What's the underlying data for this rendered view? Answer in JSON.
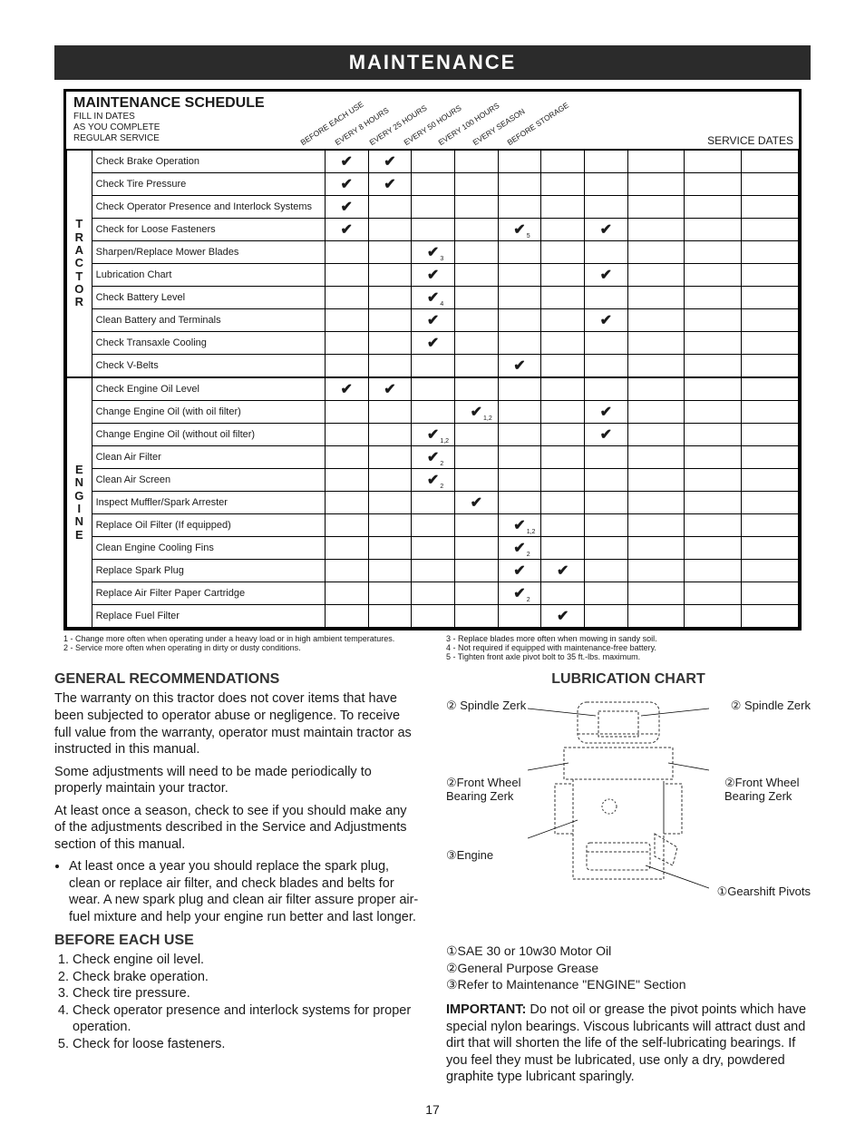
{
  "banner": "MAINTENANCE",
  "schedule": {
    "title": "MAINTENANCE SCHEDULE",
    "subtitle1": "FILL IN DATES",
    "subtitle2": "AS YOU COMPLETE",
    "subtitle3": "REGULAR SERVICE",
    "columns": [
      "BEFORE EACH USE",
      "EVERY 8 HOURS",
      "EVERY 25 HOURS",
      "EVERY 50 HOURS",
      "EVERY 100 HOURS",
      "EVERY SEASON",
      "BEFORE STORAGE"
    ],
    "service_dates_label": "SERVICE DATES",
    "groups": [
      {
        "label": "TRACTOR",
        "rows": [
          {
            "task": "Check Brake Operation",
            "checks": [
              "✔",
              "✔",
              "",
              "",
              "",
              "",
              ""
            ]
          },
          {
            "task": "Check Tire Pressure",
            "checks": [
              "✔",
              "✔",
              "",
              "",
              "",
              "",
              ""
            ]
          },
          {
            "task": "Check Operator Presence and Interlock Systems",
            "checks": [
              "✔",
              "",
              "",
              "",
              "",
              "",
              ""
            ]
          },
          {
            "task": "Check for Loose Fasteners",
            "checks": [
              "✔",
              "",
              "",
              "",
              "✔₅",
              "",
              "✔"
            ]
          },
          {
            "task": "Sharpen/Replace Mower Blades",
            "checks": [
              "",
              "",
              "✔₃",
              "",
              "",
              "",
              ""
            ]
          },
          {
            "task": "Lubrication Chart",
            "checks": [
              "",
              "",
              "✔",
              "",
              "",
              "",
              "✔"
            ]
          },
          {
            "task": "Check Battery Level",
            "checks": [
              "",
              "",
              "✔₄",
              "",
              "",
              "",
              ""
            ]
          },
          {
            "task": "Clean Battery and Terminals",
            "checks": [
              "",
              "",
              "✔",
              "",
              "",
              "",
              "✔"
            ]
          },
          {
            "task": "Check Transaxle Cooling",
            "checks": [
              "",
              "",
              "✔",
              "",
              "",
              "",
              ""
            ]
          },
          {
            "task": "Check V-Belts",
            "checks": [
              "",
              "",
              "",
              "",
              "✔",
              "",
              ""
            ]
          }
        ]
      },
      {
        "label": "ENGINE",
        "rows": [
          {
            "task": "Check Engine Oil Level",
            "checks": [
              "✔",
              "✔",
              "",
              "",
              "",
              "",
              ""
            ]
          },
          {
            "task": "Change Engine Oil (with oil filter)",
            "checks": [
              "",
              "",
              "",
              "✔₁,₂",
              "",
              "",
              "✔"
            ]
          },
          {
            "task": "Change Engine Oil (without oil filter)",
            "checks": [
              "",
              "",
              "✔₁,₂",
              "",
              "",
              "",
              "✔"
            ]
          },
          {
            "task": "Clean Air Filter",
            "checks": [
              "",
              "",
              "✔₂",
              "",
              "",
              "",
              ""
            ]
          },
          {
            "task": "Clean Air Screen",
            "checks": [
              "",
              "",
              "✔₂",
              "",
              "",
              "",
              ""
            ]
          },
          {
            "task": "Inspect Muffler/Spark Arrester",
            "checks": [
              "",
              "",
              "",
              "✔",
              "",
              "",
              ""
            ]
          },
          {
            "task": "Replace Oil Filter (If equipped)",
            "checks": [
              "",
              "",
              "",
              "",
              "✔₁,₂",
              "",
              ""
            ]
          },
          {
            "task": "Clean Engine Cooling Fins",
            "checks": [
              "",
              "",
              "",
              "",
              "✔₂",
              "",
              ""
            ]
          },
          {
            "task": "Replace Spark Plug",
            "checks": [
              "",
              "",
              "",
              "",
              "✔",
              "✔",
              ""
            ]
          },
          {
            "task": "Replace Air Filter Paper Cartridge",
            "checks": [
              "",
              "",
              "",
              "",
              "✔₂",
              "",
              ""
            ]
          },
          {
            "task": "Replace Fuel Filter",
            "checks": [
              "",
              "",
              "",
              "",
              "",
              "✔",
              ""
            ]
          }
        ]
      }
    ]
  },
  "footnotes_left": [
    "1 - Change more often when operating under a heavy load or in high ambient temperatures.",
    "2 - Service more often when operating in dirty or dusty conditions."
  ],
  "footnotes_right": [
    "3 - Replace blades more often when mowing in sandy soil.",
    "4 - Not required if equipped with maintenance-free battery.",
    "5 - Tighten front axle pivot bolt to 35 ft.-lbs. maximum."
  ],
  "gen_rec": {
    "heading": "GENERAL RECOMMENDATIONS",
    "p1": "The warranty on this tractor does not cover items that have been subjected to operator abuse or negligence. To receive full value from the warranty, operator must maintain tractor as instructed in this manual.",
    "p2": "Some adjustments will need to be made periodically to properly maintain your tractor.",
    "p3": "At least once a season, check to see if you should make any of the adjustments described in the Service and Adjustments section of this manual.",
    "bullet": "At least once a year you should replace the spark plug, clean or replace air filter, and check blades and belts for wear. A new spark plug and clean air filter assure proper air-fuel mixture and help your engine run better and last longer."
  },
  "before": {
    "heading": "BEFORE EACH USE",
    "items": [
      "Check engine oil level.",
      "Check brake operation.",
      "Check tire pressure.",
      "Check operator presence and interlock systems for proper operation.",
      "Check for loose fasteners."
    ]
  },
  "lube": {
    "heading": "LUBRICATION CHART",
    "labels": {
      "spindle_l": "② Spindle Zerk",
      "spindle_r": "② Spindle Zerk",
      "fwb_l": "②Front Wheel Bearing Zerk",
      "fwb_r": "②Front Wheel Bearing Zerk",
      "engine": "③Engine",
      "gearshift": "①Gearshift Pivots"
    },
    "legend": [
      "①SAE 30 or 10w30 Motor Oil",
      "②General Purpose Grease",
      "③Refer to Maintenance \"ENGINE\" Section"
    ]
  },
  "important": {
    "label": "IMPORTANT:",
    "text": "Do not oil or grease the pivot points which have special nylon bearings. Viscous lubricants will attract dust and dirt that will shorten the life of the self-lubricating bearings. If you feel they must be lubricated, use only a dry, powdered graphite type lubricant sparingly."
  },
  "page_number": "17",
  "colors": {
    "banner_bg": "#2b2b2b",
    "banner_fg": "#ffffff",
    "text": "#1a1a1a",
    "border": "#000000"
  }
}
